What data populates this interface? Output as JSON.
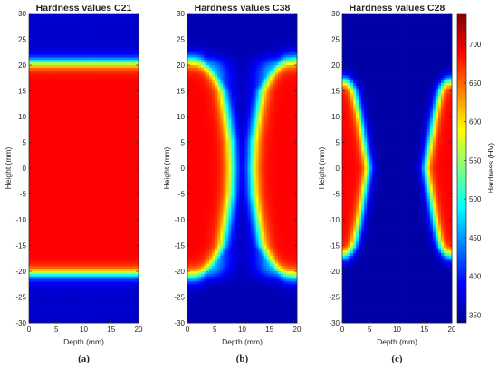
{
  "chart_data": {
    "type": "heatmap",
    "colorbar": {
      "label": "Hardness (HV)",
      "range": [
        340,
        740
      ],
      "ticks": [
        "350",
        "400",
        "450",
        "500",
        "550",
        "600",
        "650",
        "700"
      ],
      "tick_values": [
        350,
        400,
        450,
        500,
        550,
        600,
        650,
        700
      ],
      "colormap": "jet"
    },
    "panels": [
      {
        "title": "Hardness values C21",
        "sublabel": "(a)",
        "xlabel": "Depth (mm)",
        "ylabel": "Height (mm)",
        "xlim": [
          0,
          20
        ],
        "ylim": [
          -30,
          30
        ],
        "xticks": [
          "0",
          "5",
          "10",
          "15",
          "20"
        ],
        "xtick_values": [
          0,
          5,
          10,
          15,
          20
        ],
        "yticks": [
          "-30",
          "-25",
          "-20",
          "-15",
          "-10",
          "-5",
          "0",
          "5",
          "10",
          "15",
          "20",
          "25",
          "30"
        ],
        "ytick_values": [
          -30,
          -25,
          -20,
          -15,
          -10,
          -5,
          0,
          5,
          10,
          15,
          20,
          25,
          30
        ],
        "hard_zone_height_profile": [
          [
            0,
            20.5
          ],
          [
            20,
            20.5
          ]
        ],
        "hard_zone_bottom_profile": [
          [
            0,
            -20.5
          ],
          [
            20,
            -20.5
          ]
        ],
        "hardness_base_HV": 370,
        "hardness_max_HV": 690
      },
      {
        "title": "Hardness values C38",
        "sublabel": "(b)",
        "xlabel": "Depth (mm)",
        "ylabel": "Height (mm)",
        "xlim": [
          0,
          20
        ],
        "ylim": [
          -30,
          30
        ],
        "xticks": [
          "0",
          "5",
          "10",
          "15",
          "20"
        ],
        "xtick_values": [
          0,
          5,
          10,
          15,
          20
        ],
        "yticks": [
          "-30",
          "-25",
          "-20",
          "-15",
          "-10",
          "-5",
          "0",
          "5",
          "10",
          "15",
          "20",
          "25",
          "30"
        ],
        "ytick_values": [
          -30,
          -25,
          -20,
          -15,
          -10,
          -5,
          0,
          5,
          10,
          15,
          20,
          25,
          30
        ],
        "hard_zone_half_width_profile": [
          [
            -21,
            3
          ],
          [
            -18,
            5
          ],
          [
            -15,
            6.5
          ],
          [
            -10,
            7.3
          ],
          [
            -5,
            8
          ],
          [
            0,
            8.2
          ],
          [
            5,
            8
          ],
          [
            10,
            7.3
          ],
          [
            15,
            6.5
          ],
          [
            18,
            5
          ],
          [
            21,
            3
          ]
        ],
        "hard_zone_height_limit": 21,
        "hardness_base_HV": 360,
        "hardness_max_HV": 690
      },
      {
        "title": "Hardness values C28",
        "sublabel": "(c)",
        "xlabel": "Depth (mm)",
        "ylabel": "Height (mm)",
        "xlim": [
          0,
          20
        ],
        "ylim": [
          -30,
          30
        ],
        "xticks": [
          "0",
          "5",
          "10",
          "15",
          "20"
        ],
        "xtick_values": [
          0,
          5,
          10,
          15,
          20
        ],
        "yticks": [
          "-30",
          "-25",
          "-20",
          "-15",
          "-10",
          "-5",
          "0",
          "5",
          "10",
          "15",
          "20",
          "25",
          "30"
        ],
        "ytick_values": [
          -30,
          -25,
          -20,
          -15,
          -10,
          -5,
          0,
          5,
          10,
          15,
          20,
          25,
          30
        ],
        "hard_zone_depth_profile": [
          [
            -17,
            1.5
          ],
          [
            -15,
            2.2
          ],
          [
            -10,
            3.2
          ],
          [
            -5,
            4
          ],
          [
            0,
            4.8
          ],
          [
            5,
            4
          ],
          [
            10,
            3.2
          ],
          [
            15,
            2.2
          ],
          [
            17,
            1.5
          ]
        ],
        "hard_zone_height_limit": 17,
        "hardness_base_HV": 355,
        "hardness_max_HV": 690
      }
    ]
  }
}
